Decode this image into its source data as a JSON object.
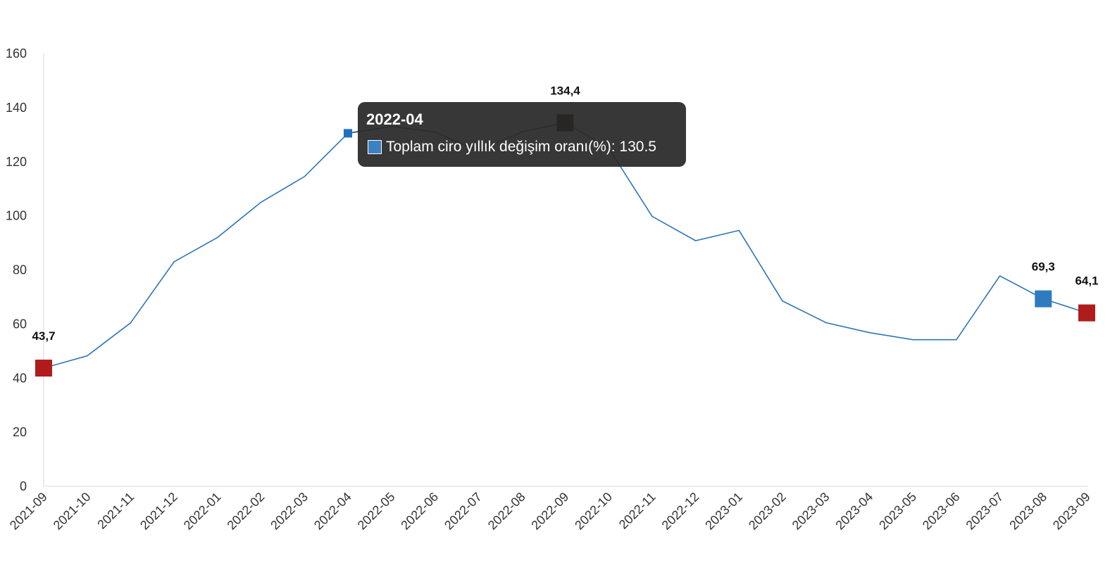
{
  "chart_data": {
    "type": "line",
    "title": "",
    "xlabel": "",
    "ylabel": "",
    "ylim": [
      0,
      160
    ],
    "yticks": [
      0,
      20,
      40,
      60,
      80,
      100,
      120,
      140,
      160
    ],
    "grid": false,
    "categories": [
      "2021-09",
      "2021-10",
      "2021-11",
      "2021-12",
      "2022-01",
      "2022-02",
      "2022-03",
      "2022-04",
      "2022-05",
      "2022-06",
      "2022-07",
      "2022-08",
      "2022-09",
      "2022-10",
      "2022-11",
      "2022-12",
      "2023-01",
      "2023-02",
      "2023-03",
      "2023-04",
      "2023-05",
      "2023-06",
      "2023-07",
      "2023-08",
      "2023-09"
    ],
    "series": [
      {
        "name": "Toplam ciro yıllık değişim oranı(%)",
        "color": "#2e75b6",
        "values": [
          43.7,
          48.2,
          60.4,
          83.0,
          92.0,
          105.0,
          114.5,
          130.5,
          133.0,
          131.0,
          124.0,
          131.0,
          134.4,
          125.0,
          99.8,
          90.8,
          94.6,
          68.5,
          60.5,
          56.8,
          54.2,
          54.2,
          77.8,
          69.3,
          64.1
        ]
      }
    ],
    "markers": [
      {
        "category": "2021-09",
        "value": 43.7,
        "label": "43,7",
        "color": "#b01c1c"
      },
      {
        "category": "2022-09",
        "value": 134.4,
        "label": "134,4",
        "color": "#2a0606"
      },
      {
        "category": "2023-08",
        "value": 69.3,
        "label": "69,3",
        "color": "#2e7bbf"
      },
      {
        "category": "2023-09",
        "value": 64.1,
        "label": "64,1",
        "color": "#b01c1c"
      }
    ],
    "hover_point": {
      "category": "2022-04",
      "value": 130.5,
      "color": "#1f6fbf"
    }
  },
  "tooltip": {
    "title": "2022-04",
    "series_label": "Toplam ciro yıllık değişim oranı(%)",
    "value": "130.5",
    "row_text": "Toplam ciro yıllık değişim oranı(%): 130.5"
  }
}
